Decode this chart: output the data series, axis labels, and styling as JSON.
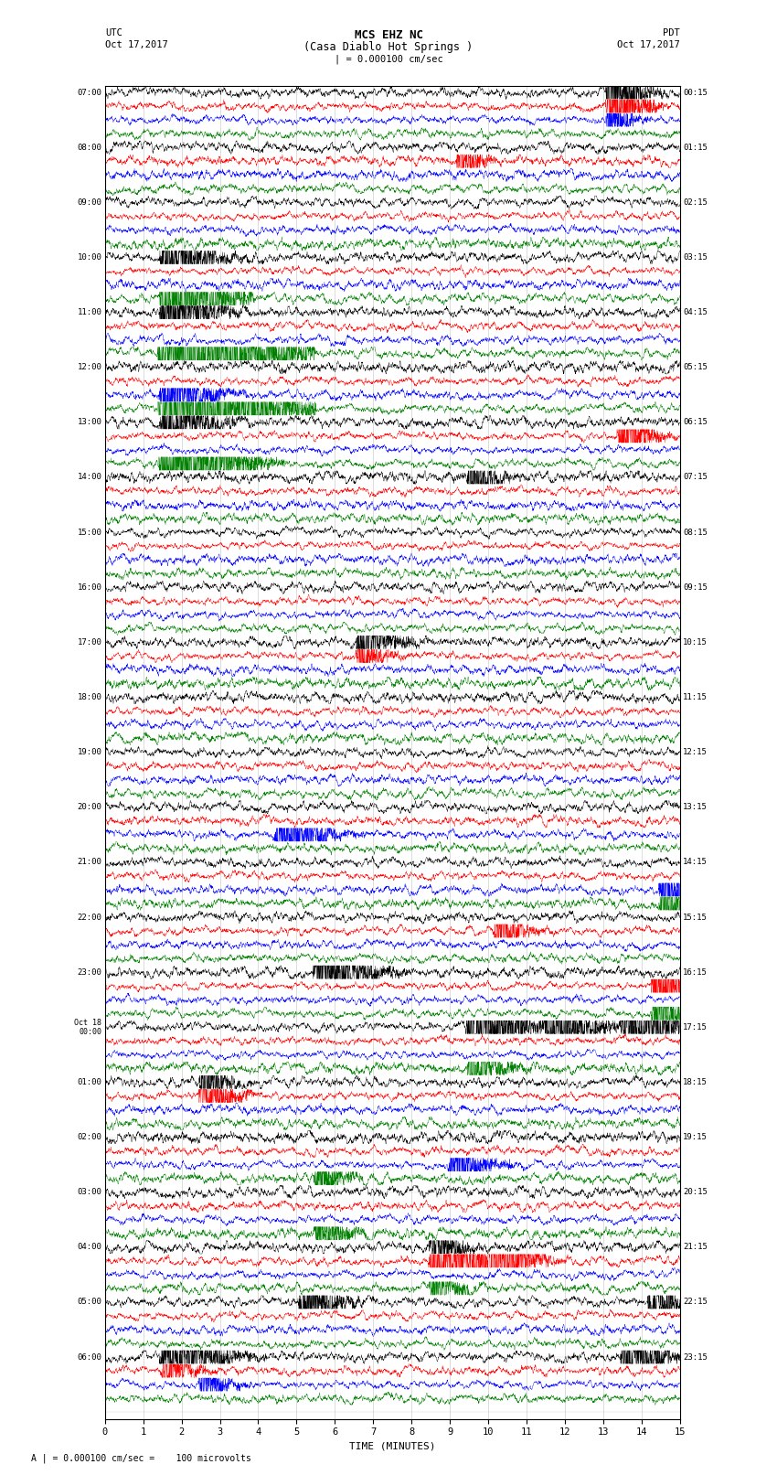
{
  "title_line1": "MCS EHZ NC",
  "title_line2": "(Casa Diablo Hot Springs )",
  "scale_text": "| = 0.000100 cm/sec",
  "left_header": "UTC",
  "left_date": "Oct 17,2017",
  "right_header": "PDT",
  "right_date": "Oct 17,2017",
  "xlabel": "TIME (MINUTES)",
  "bottom_note": "= 0.000100 cm/sec =    100 microvolts",
  "left_times": [
    "07:00",
    "08:00",
    "09:00",
    "10:00",
    "11:00",
    "12:00",
    "13:00",
    "14:00",
    "15:00",
    "16:00",
    "17:00",
    "18:00",
    "19:00",
    "20:00",
    "21:00",
    "22:00",
    "23:00",
    "Oct 18\n00:00",
    "01:00",
    "02:00",
    "03:00",
    "04:00",
    "05:00",
    "06:00"
  ],
  "right_times": [
    "00:15",
    "01:15",
    "02:15",
    "03:15",
    "04:15",
    "05:15",
    "06:15",
    "07:15",
    "08:15",
    "09:15",
    "10:15",
    "11:15",
    "12:15",
    "13:15",
    "14:15",
    "15:15",
    "16:15",
    "17:15",
    "18:15",
    "19:15",
    "20:15",
    "21:15",
    "22:15",
    "23:15"
  ],
  "n_rows": 24,
  "n_cols": 4,
  "colors": [
    "black",
    "red",
    "blue",
    "green"
  ],
  "bg_color": "#ffffff",
  "xlim": [
    0,
    15
  ],
  "xticks": [
    0,
    1,
    2,
    3,
    4,
    5,
    6,
    7,
    8,
    9,
    10,
    11,
    12,
    13,
    14,
    15
  ],
  "seed": 42,
  "special_events": [
    [
      3,
      3,
      1.5,
      12.0,
      0.3
    ],
    [
      4,
      3,
      1.5,
      18.0,
      0.5
    ],
    [
      5,
      3,
      1.5,
      15.0,
      0.5
    ],
    [
      5,
      2,
      1.5,
      3.0,
      0.3
    ],
    [
      6,
      3,
      1.5,
      8.0,
      0.4
    ],
    [
      6,
      0,
      1.5,
      3.0,
      0.3
    ],
    [
      3,
      0,
      1.5,
      3.5,
      0.3
    ],
    [
      4,
      0,
      1.5,
      4.0,
      0.3
    ],
    [
      0,
      0,
      13.1,
      4.0,
      0.2
    ],
    [
      0,
      1,
      13.1,
      5.0,
      0.2
    ],
    [
      0,
      2,
      13.1,
      2.5,
      0.15
    ],
    [
      1,
      1,
      9.2,
      2.5,
      0.15
    ],
    [
      7,
      0,
      9.5,
      2.0,
      0.2
    ],
    [
      6,
      1,
      13.4,
      3.5,
      0.2
    ],
    [
      10,
      0,
      6.6,
      2.5,
      0.25
    ],
    [
      10,
      1,
      6.6,
      1.5,
      0.2
    ],
    [
      13,
      2,
      4.5,
      3.0,
      0.3
    ],
    [
      14,
      3,
      14.5,
      3.0,
      0.25
    ],
    [
      14,
      2,
      14.5,
      2.0,
      0.2
    ],
    [
      15,
      1,
      10.2,
      2.5,
      0.2
    ],
    [
      16,
      0,
      5.5,
      5.0,
      0.3
    ],
    [
      16,
      1,
      14.3,
      5.0,
      0.25
    ],
    [
      16,
      3,
      14.3,
      3.0,
      0.2
    ],
    [
      17,
      0,
      9.5,
      5.0,
      0.35
    ],
    [
      17,
      0,
      11.5,
      4.0,
      0.3
    ],
    [
      17,
      0,
      13.5,
      3.5,
      0.25
    ],
    [
      17,
      0,
      14.2,
      2.5,
      0.2
    ],
    [
      17,
      3,
      9.5,
      2.0,
      0.25
    ],
    [
      18,
      0,
      2.5,
      2.0,
      0.2
    ],
    [
      18,
      1,
      2.5,
      3.5,
      0.2
    ],
    [
      19,
      2,
      9.0,
      2.5,
      0.25
    ],
    [
      19,
      3,
      5.5,
      2.0,
      0.2
    ],
    [
      20,
      3,
      5.5,
      2.5,
      0.2
    ],
    [
      21,
      1,
      8.5,
      5.0,
      0.25
    ],
    [
      21,
      1,
      9.3,
      4.0,
      0.2
    ],
    [
      21,
      1,
      10.0,
      4.0,
      0.2
    ],
    [
      21,
      1,
      10.5,
      3.0,
      0.2
    ],
    [
      21,
      0,
      8.5,
      2.0,
      0.2
    ],
    [
      21,
      3,
      8.5,
      2.0,
      0.2
    ],
    [
      22,
      0,
      5.1,
      3.0,
      0.25
    ],
    [
      22,
      0,
      14.2,
      2.5,
      0.2
    ],
    [
      23,
      0,
      1.5,
      4.0,
      0.35
    ],
    [
      23,
      0,
      13.5,
      3.0,
      0.25
    ],
    [
      23,
      1,
      1.5,
      2.0,
      0.2
    ],
    [
      23,
      2,
      2.5,
      2.0,
      0.2
    ]
  ]
}
